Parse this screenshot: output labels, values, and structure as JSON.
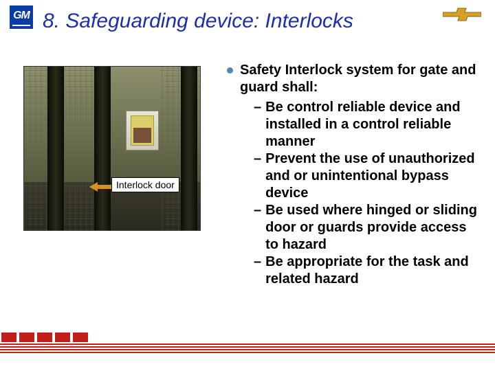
{
  "logo_text": "GM",
  "title": "8. Safeguarding device: Interlocks",
  "title_color": "#1a2fb0",
  "photo_label": "Interlock door",
  "arrow_color": "#d89020",
  "bullet_color": "#5a83b6",
  "text_color": "#000000",
  "content": {
    "intro": "Safety Interlock system for gate and guard shall:",
    "items": [
      "Be control reliable device and installed in a control reliable manner",
      "Prevent the use of unauthorized and or unintentional bypass device",
      "Be used where hinged or sliding door or guards provide access to hazard",
      "Be appropriate for the task and related hazard"
    ]
  },
  "footer": {
    "red": "#c02018",
    "block_count": 5
  },
  "chevy_colors": {
    "gold": "#d8a020",
    "border": "#8a6510"
  }
}
